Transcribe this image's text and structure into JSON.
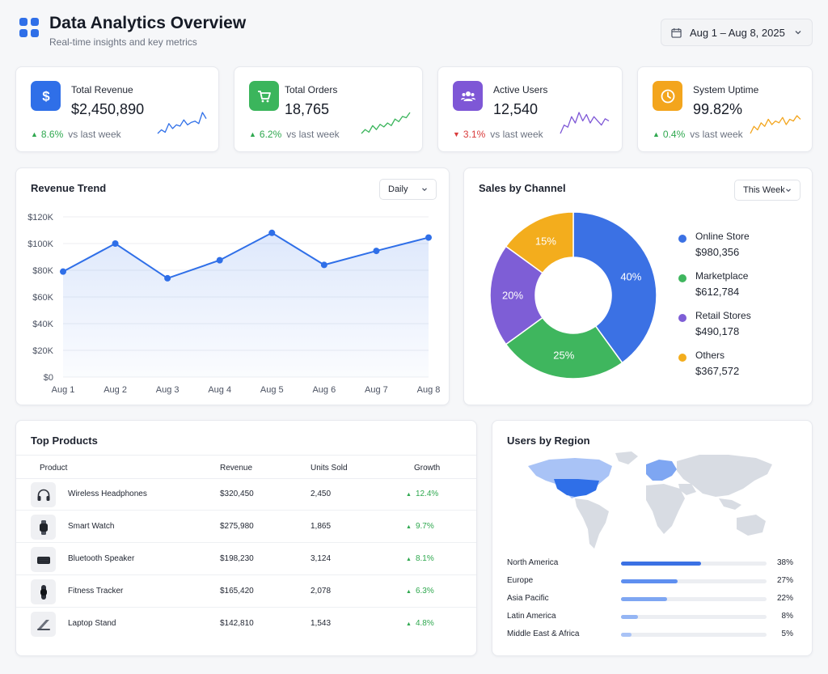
{
  "header": {
    "title": "Data Analytics Overview",
    "subtitle": "Real-time insights and key metrics",
    "date_range": "Aug 1 – Aug 8, 2025",
    "icons": [
      "grid-icon",
      "calendar-icon",
      "chevron-down-icon"
    ]
  },
  "kpis": [
    {
      "label": "Total Revenue",
      "value": "$2,450,890",
      "delta": "8.6%",
      "direction": "up",
      "context": "vs last week",
      "icon": "dollar-icon",
      "color": "#2f6fe8",
      "spark": [
        3,
        6,
        4,
        11,
        7,
        10,
        9,
        14,
        10,
        12,
        13,
        11,
        20,
        15
      ]
    },
    {
      "label": "Total Orders",
      "value": "18,765",
      "delta": "6.2%",
      "direction": "up",
      "context": "vs last week",
      "icon": "cart-icon",
      "color": "#3bb55c",
      "spark": [
        3,
        6,
        4,
        9,
        6,
        10,
        8,
        11,
        9,
        14,
        12,
        16,
        15,
        19
      ]
    },
    {
      "label": "Active Users",
      "value": "12,540",
      "delta": "3.1%",
      "direction": "down",
      "context": "vs last week",
      "icon": "users-icon",
      "color": "#7e57d6",
      "spark": [
        4,
        8,
        7,
        12,
        9,
        14,
        10,
        13,
        9,
        12,
        10,
        8,
        11,
        10
      ]
    },
    {
      "label": "System Uptime",
      "value": "99.82%",
      "delta": "0.4%",
      "direction": "up",
      "context": "vs last week",
      "icon": "clock-icon",
      "color": "#f3a51d",
      "spark": [
        4,
        8,
        6,
        10,
        8,
        12,
        9,
        11,
        10,
        13,
        9,
        12,
        11,
        14,
        12
      ]
    }
  ],
  "revenue": {
    "title": "Revenue Trend",
    "period": "Daily",
    "chart_data": {
      "type": "area",
      "categories": [
        "Aug 1",
        "Aug 2",
        "Aug 3",
        "Aug 4",
        "Aug 5",
        "Aug 6",
        "Aug 7",
        "Aug 8"
      ],
      "values": [
        79000,
        100000,
        74000,
        87500,
        108000,
        84000,
        94500,
        104500
      ],
      "yticks": [
        "$0",
        "$20K",
        "$40K",
        "$60K",
        "$80K",
        "$100K",
        "$120K"
      ],
      "ylim": [
        0,
        120000
      ],
      "color": "#2f6fe8",
      "grid": true
    }
  },
  "channels": {
    "title": "Sales by Channel",
    "period": "This Week",
    "chart_data": {
      "type": "pie",
      "labels": [
        "Online Store",
        "Marketplace",
        "Retail Stores",
        "Others"
      ],
      "values": [
        40,
        25,
        20,
        15
      ],
      "slice_labels": [
        "40%",
        "25%",
        "20%",
        "15%"
      ],
      "amounts": [
        "$980,356",
        "$612,784",
        "$490,178",
        "$367,572"
      ],
      "colors": [
        "#3b71e4",
        "#3fb65e",
        "#7e5ed6",
        "#f3ad1d"
      ]
    }
  },
  "products": {
    "title": "Top Products",
    "columns": [
      "Product",
      "Revenue",
      "Units Sold",
      "Growth"
    ],
    "rows": [
      {
        "name": "Wireless Headphones",
        "revenue": "$320,450",
        "units": "2,450",
        "growth": "12.4%",
        "icon": "headphones-icon"
      },
      {
        "name": "Smart Watch",
        "revenue": "$275,980",
        "units": "1,865",
        "growth": "9.7%",
        "icon": "smartwatch-icon"
      },
      {
        "name": "Bluetooth Speaker",
        "revenue": "$198,230",
        "units": "3,124",
        "growth": "8.1%",
        "icon": "speaker-icon"
      },
      {
        "name": "Fitness Tracker",
        "revenue": "$165,420",
        "units": "2,078",
        "growth": "6.3%",
        "icon": "fitness-tracker-icon"
      },
      {
        "name": "Laptop Stand",
        "revenue": "$142,810",
        "units": "1,543",
        "growth": "4.8%",
        "icon": "laptop-stand-icon"
      }
    ]
  },
  "regions": {
    "title": "Users by Region",
    "rows": [
      {
        "name": "North America",
        "pct": "38%",
        "share": 0.38,
        "color": "#3b71e4"
      },
      {
        "name": "Europe",
        "pct": "27%",
        "share": 0.27,
        "color": "#5e8ff0"
      },
      {
        "name": "Asia Pacific",
        "pct": "22%",
        "share": 0.22,
        "color": "#7ea6f2"
      },
      {
        "name": "Latin America",
        "pct": "8%",
        "share": 0.08,
        "color": "#94b5f4"
      },
      {
        "name": "Middle East & Africa",
        "pct": "5%",
        "share": 0.05,
        "color": "#a9c3f6"
      }
    ]
  }
}
